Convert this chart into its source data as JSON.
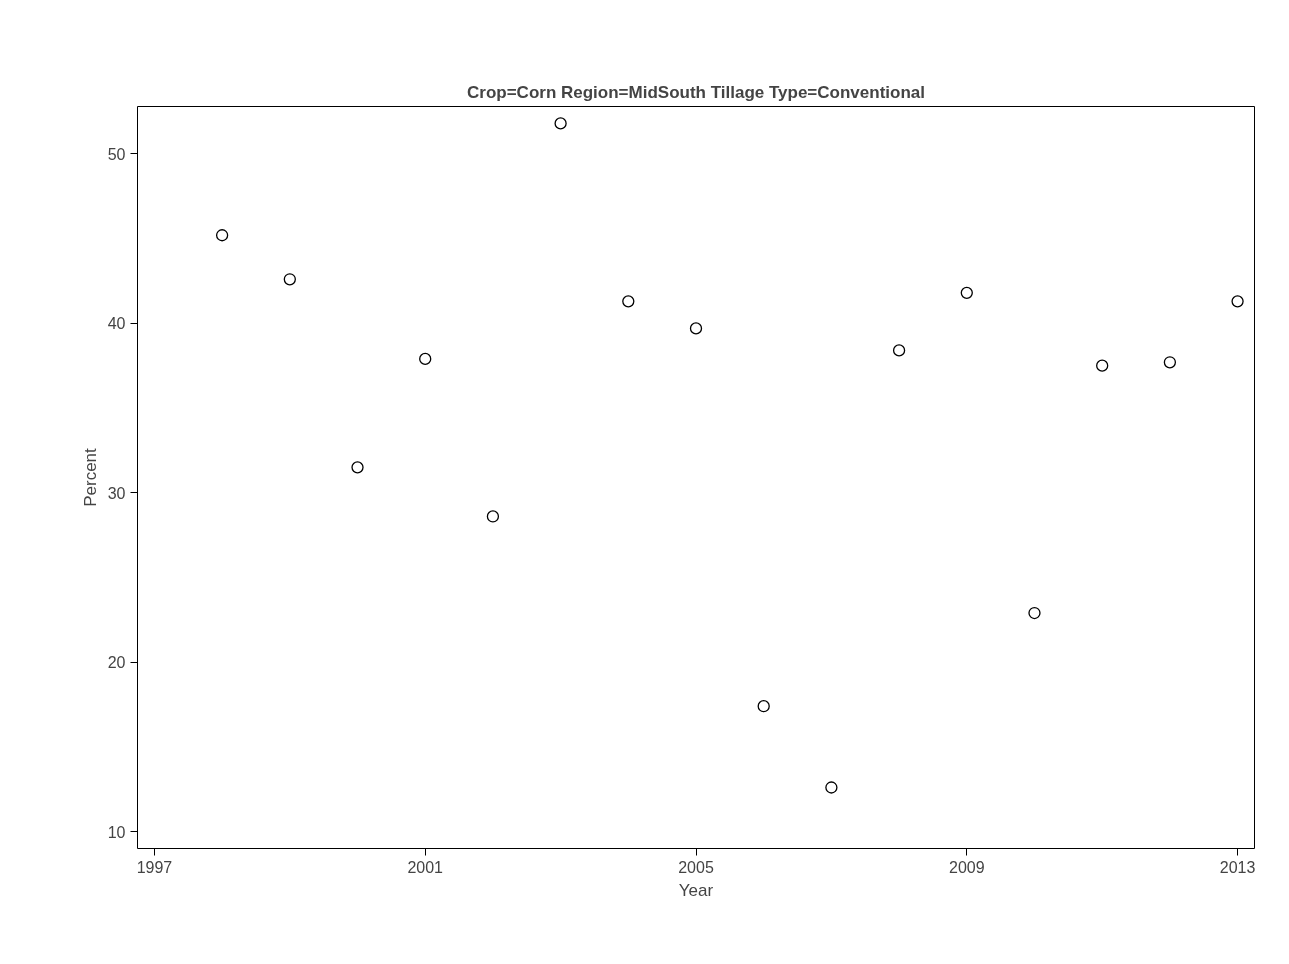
{
  "chart_data": {
    "type": "scatter",
    "title": "Crop=Corn Region=MidSouth Tillage Type=Conventional",
    "xlabel": "Year",
    "ylabel": "Percent",
    "x": [
      1998,
      1999,
      2000,
      2001,
      2002,
      2003,
      2004,
      2005,
      2006,
      2007,
      2008,
      2009,
      2010,
      2011,
      2012,
      2013
    ],
    "values": [
      45.2,
      42.6,
      31.5,
      37.9,
      28.6,
      51.8,
      41.3,
      39.7,
      17.4,
      12.6,
      38.4,
      41.8,
      22.9,
      37.5,
      37.7,
      41.3
    ],
    "color": "#000000",
    "marker": "circle",
    "xlim": [
      1996.75,
      2013.25
    ],
    "ylim": [
      9.0,
      52.8
    ],
    "xticks": [
      1997,
      2001,
      2005,
      2009,
      2013
    ],
    "yticks": [
      10,
      20,
      30,
      40,
      50
    ],
    "grid": false
  }
}
